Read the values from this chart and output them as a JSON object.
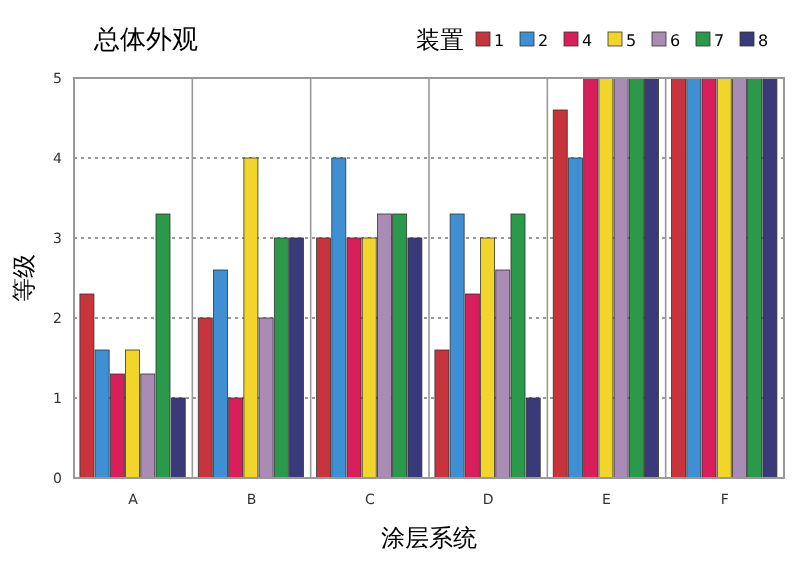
{
  "chart_data": {
    "type": "bar",
    "title": "总体外观",
    "xlabel": "涂层系统",
    "ylabel": "等级",
    "legend_title": "装置",
    "categories": [
      "A",
      "B",
      "C",
      "D",
      "E",
      "F"
    ],
    "series": [
      {
        "name": "1",
        "color": "#c8343c",
        "values": [
          2.3,
          2.0,
          3.0,
          1.6,
          4.6,
          5
        ]
      },
      {
        "name": "2",
        "color": "#3f8fd4",
        "values": [
          1.6,
          2.6,
          4.0,
          3.3,
          4.0,
          5
        ]
      },
      {
        "name": "4",
        "color": "#d81e5b",
        "values": [
          1.3,
          1.0,
          3.0,
          2.3,
          5,
          5
        ]
      },
      {
        "name": "5",
        "color": "#f2d52a",
        "values": [
          1.6,
          4.0,
          3.0,
          3.0,
          5,
          5
        ]
      },
      {
        "name": "6",
        "color": "#a98bb5",
        "values": [
          1.3,
          2.0,
          3.3,
          2.6,
          5,
          5
        ]
      },
      {
        "name": "7",
        "color": "#2a9a4a",
        "values": [
          3.3,
          3.0,
          3.3,
          3.3,
          5,
          5
        ]
      },
      {
        "name": "8",
        "color": "#3a3a7a",
        "values": [
          1.0,
          3.0,
          3.0,
          1.0,
          5,
          5
        ]
      }
    ],
    "ylim": [
      0,
      5
    ],
    "yticks": [
      0,
      1,
      2,
      3,
      4,
      5
    ],
    "grid": "y",
    "legend": "top right"
  }
}
